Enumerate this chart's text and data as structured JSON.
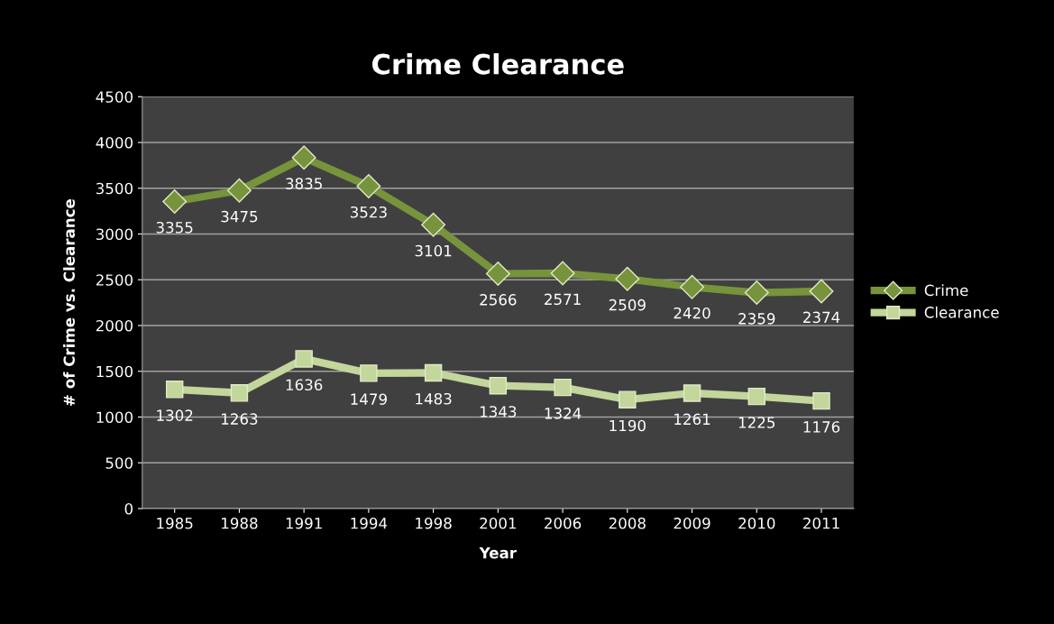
{
  "chart_data": {
    "type": "line",
    "title": "Crime Clearance",
    "xlabel": "Year",
    "ylabel": "# of Crime vs. Clearance",
    "categories": [
      "1985",
      "1988",
      "1991",
      "1994",
      "1998",
      "2001",
      "2006",
      "2008",
      "2009",
      "2010",
      "2011"
    ],
    "series": [
      {
        "name": "Crime",
        "color": "#77933c",
        "marker": "diamond",
        "values": [
          3355,
          3475,
          3835,
          3523,
          3101,
          2566,
          2571,
          2509,
          2420,
          2359,
          2374
        ]
      },
      {
        "name": "Clearance",
        "color": "#c3d69b",
        "marker": "square",
        "values": [
          1302,
          1263,
          1636,
          1479,
          1483,
          1343,
          1324,
          1190,
          1261,
          1225,
          1176
        ]
      }
    ],
    "ylim": [
      0,
      4500
    ],
    "yticks": [
      0,
      500,
      1000,
      1500,
      2000,
      2500,
      3000,
      3500,
      4000,
      4500
    ],
    "grid": "y",
    "legend": "right",
    "data_labels": true,
    "line_style": "solid"
  }
}
